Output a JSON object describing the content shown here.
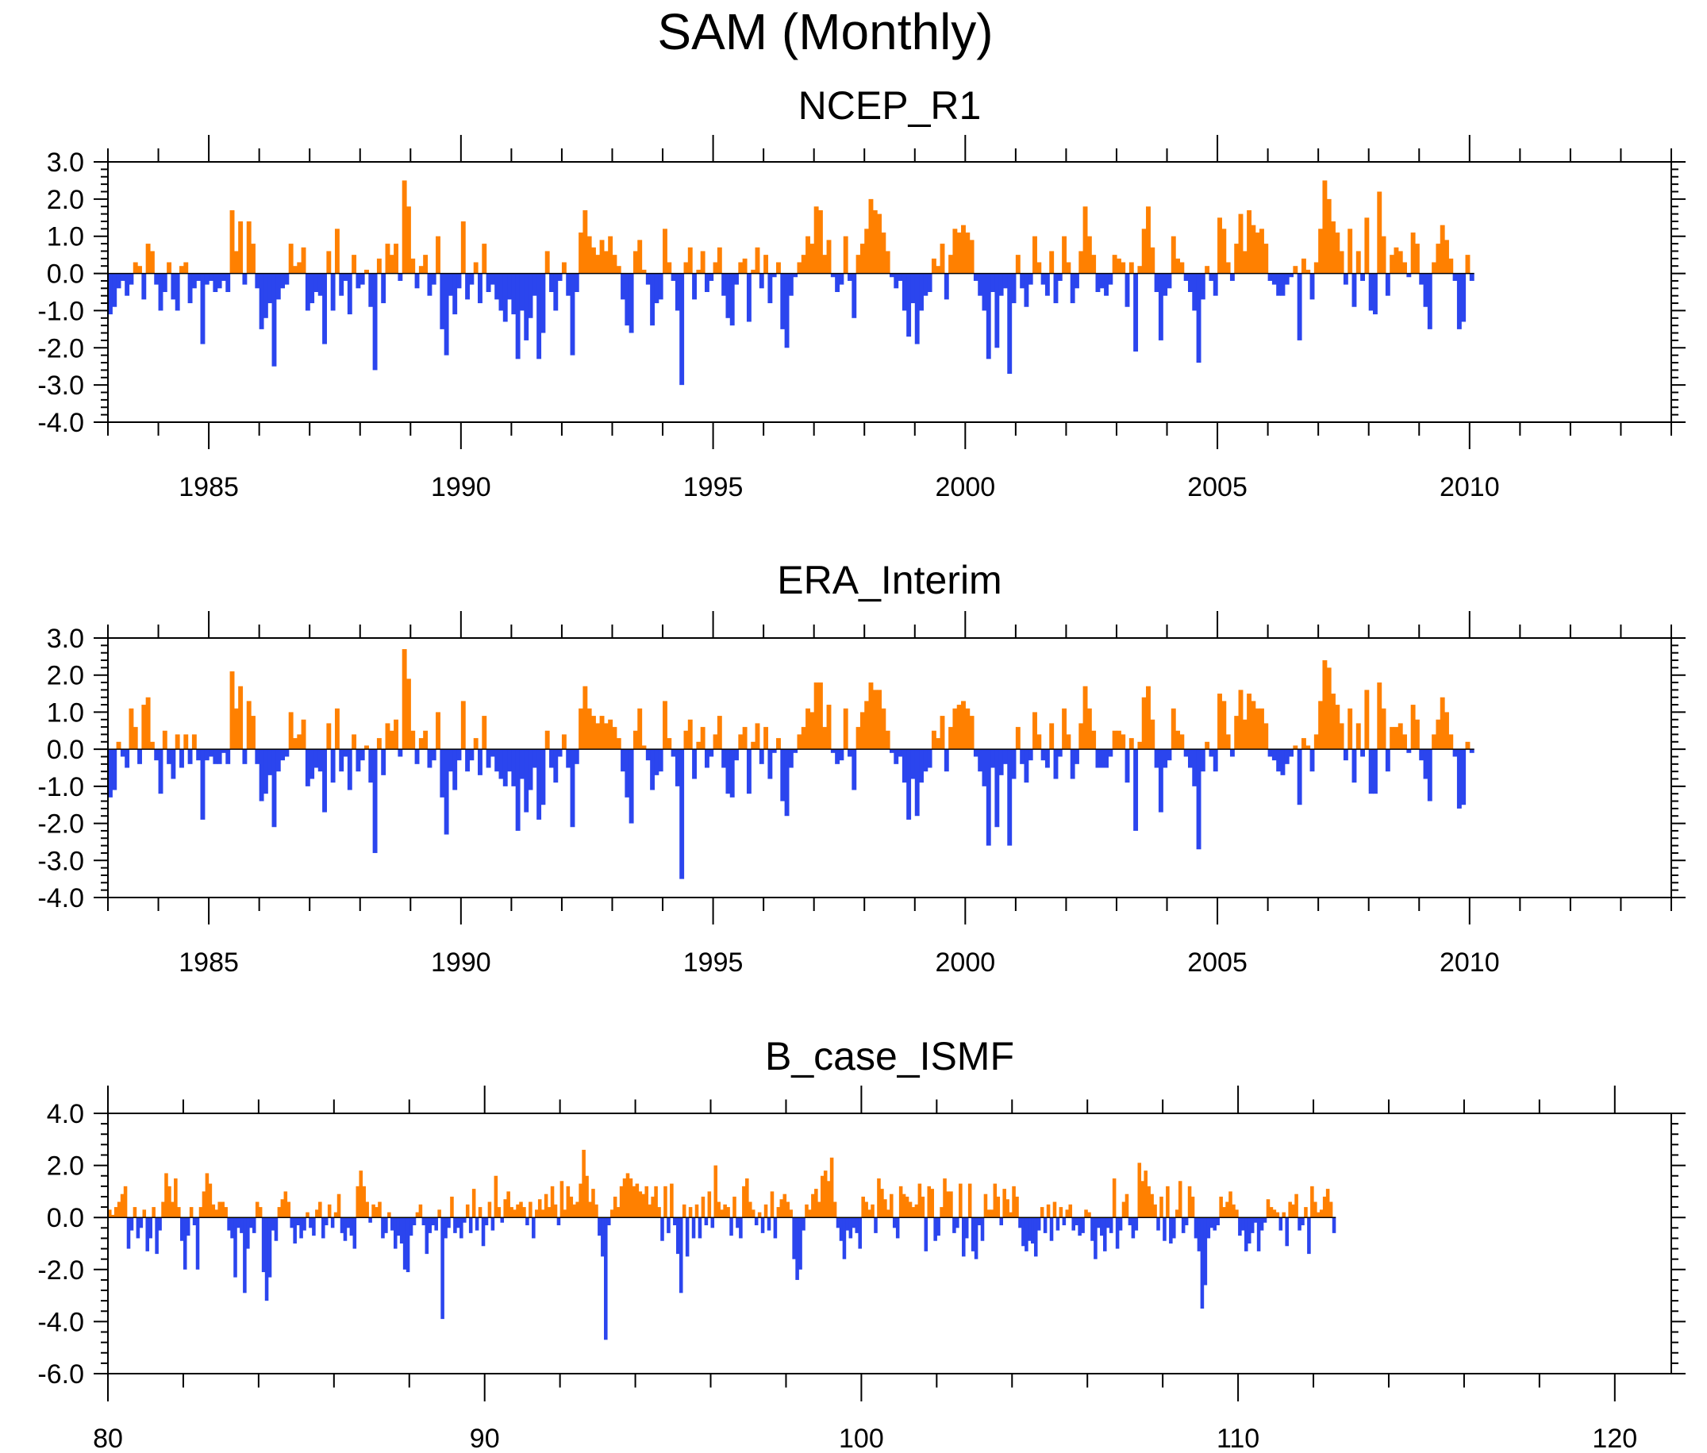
{
  "title": "SAM (Monthly)",
  "colors": {
    "positive": "#ff8000",
    "negative": "#2b45ee",
    "axis": "#000000"
  },
  "chart_data": [
    {
      "type": "area",
      "title": "NCEP_R1",
      "xlabel": "",
      "ylabel": "",
      "xlim": [
        1983,
        2014
      ],
      "ylim": [
        -4.0,
        3.0
      ],
      "x_ticks": [
        "1985",
        "1990",
        "1995",
        "2000",
        "2005",
        "2010"
      ],
      "x_tick_values": [
        1985,
        1990,
        1995,
        2000,
        2005,
        2010
      ],
      "y_ticks": [
        "3.0",
        "2.0",
        "1.0",
        "0.0",
        "-1.0",
        "-2.0",
        "-3.0",
        "-4.0"
      ],
      "y_tick_values": [
        3,
        2,
        1,
        0,
        -1,
        -2,
        -3,
        -4
      ],
      "positive_color": "#ff8000",
      "negative_color": "#2b45ee",
      "x_start": 1983.0,
      "x_step": 0.0833333,
      "values": [
        -1.1,
        -0.9,
        -0.4,
        -0.2,
        -0.6,
        -0.3,
        0.3,
        0.2,
        -0.7,
        0.8,
        0.6,
        -0.3,
        -1.0,
        -0.5,
        0.3,
        -0.7,
        -1.0,
        0.2,
        0.3,
        -0.8,
        -0.4,
        -0.2,
        -1.9,
        -0.3,
        -0.2,
        -0.5,
        -0.4,
        -0.2,
        -0.5,
        1.7,
        0.6,
        1.4,
        -0.3,
        1.4,
        0.8,
        -0.4,
        -1.5,
        -1.2,
        -0.8,
        -2.5,
        -0.7,
        -0.4,
        -0.3,
        0.8,
        0.2,
        0.3,
        0.7,
        -1.0,
        -0.8,
        -0.5,
        -0.6,
        -1.9,
        0.6,
        -1.0,
        1.2,
        -0.6,
        -0.2,
        -1.1,
        0.5,
        -0.4,
        -0.3,
        0.1,
        -0.9,
        -2.6,
        0.4,
        -0.8,
        0.8,
        0.5,
        0.8,
        -0.2,
        2.5,
        1.8,
        0.4,
        -0.4,
        0.2,
        0.5,
        -0.6,
        -0.3,
        1.0,
        -1.5,
        -2.2,
        -0.6,
        -1.1,
        -0.4,
        1.4,
        -0.7,
        -0.3,
        0.3,
        -0.8,
        0.8,
        -0.5,
        -0.3,
        -0.7,
        -1.0,
        -1.3,
        -0.7,
        -1.1,
        -2.3,
        -1.0,
        -1.8,
        -1.2,
        -0.6,
        -2.3,
        -1.6,
        0.6,
        -0.5,
        -1.0,
        -0.2,
        0.3,
        -0.6,
        -2.2,
        -0.5,
        1.1,
        1.7,
        1.0,
        0.7,
        0.5,
        0.9,
        0.6,
        1.0,
        0.5,
        0.2,
        -0.7,
        -1.4,
        -1.6,
        0.6,
        0.9,
        0.1,
        -0.3,
        -1.4,
        -0.8,
        -0.7,
        1.2,
        0.3,
        -0.2,
        -1.0,
        -3.0,
        0.3,
        0.7,
        -0.7,
        0.1,
        0.6,
        -0.5,
        -0.2,
        0.3,
        0.7,
        -0.6,
        -1.2,
        -1.4,
        -0.3,
        0.3,
        0.4,
        -1.3,
        0.1,
        0.7,
        -0.4,
        0.5,
        -0.8,
        -0.1,
        0.3,
        -1.5,
        -2.0,
        -0.6,
        -0.1,
        0.3,
        0.5,
        1.0,
        0.8,
        1.8,
        1.7,
        0.5,
        0.9,
        -0.1,
        -0.5,
        -0.3,
        1.0,
        -0.2,
        -1.2,
        0.5,
        0.8,
        1.2,
        2.0,
        1.7,
        1.6,
        1.1,
        0.6,
        -0.1,
        -0.4,
        -0.2,
        -1.0,
        -1.7,
        -0.8,
        -1.9,
        -1.0,
        -0.6,
        -0.5,
        0.4,
        0.2,
        0.8,
        -0.7,
        0.5,
        1.2,
        1.1,
        1.3,
        1.1,
        0.9,
        -0.2,
        -0.6,
        -1.0,
        -2.3,
        -0.5,
        -2.0,
        -0.6,
        -0.4,
        -2.7,
        -0.8,
        0.5,
        -0.4,
        -0.9,
        -0.3,
        1.0,
        0.3,
        -0.3,
        -0.6,
        0.6,
        -0.8,
        -0.2,
        1.0,
        0.3,
        -0.8,
        -0.4,
        0.6,
        1.8,
        1.0,
        0.5,
        -0.5,
        -0.4,
        -0.6,
        -0.3,
        0.5,
        0.4,
        0.3,
        -0.9,
        0.3,
        -2.1,
        0.2,
        1.2,
        1.8,
        0.7,
        -0.5,
        -1.8,
        -0.6,
        -0.4,
        1.0,
        0.4,
        0.3,
        -0.2,
        -0.5,
        -1.0,
        -2.4,
        -0.7,
        0.2,
        -0.2,
        -0.6,
        1.5,
        1.2,
        0.3,
        -0.2,
        0.8,
        1.6,
        0.6,
        1.7,
        1.3,
        1.1,
        1.2,
        0.8,
        -0.2,
        -0.3,
        -0.6,
        -0.6,
        -0.3,
        -0.1,
        0.2,
        -1.8,
        0.4,
        0.1,
        -0.7,
        0.3,
        1.2,
        2.5,
        2.0,
        1.4,
        1.1,
        0.6,
        -0.3,
        1.2,
        -0.9,
        0.6,
        -0.2,
        1.5,
        -1.0,
        -1.1,
        2.2,
        1.0,
        -0.6,
        0.5,
        0.7,
        0.6,
        0.3,
        -0.1,
        1.1,
        0.8,
        -0.3,
        -0.9,
        -1.5,
        0.3,
        0.8,
        1.3,
        0.9,
        0.4,
        -0.2,
        -1.5,
        -1.3,
        0.5,
        -0.2
      ]
    },
    {
      "type": "area",
      "title": "ERA_Interim",
      "xlabel": "",
      "ylabel": "",
      "xlim": [
        1983,
        2014
      ],
      "ylim": [
        -4.0,
        3.0
      ],
      "x_ticks": [
        "1985",
        "1990",
        "1995",
        "2000",
        "2005",
        "2010"
      ],
      "x_tick_values": [
        1985,
        1990,
        1995,
        2000,
        2005,
        2010
      ],
      "y_ticks": [
        "3.0",
        "2.0",
        "1.0",
        "0.0",
        "-1.0",
        "-2.0",
        "-3.0",
        "-4.0"
      ],
      "y_tick_values": [
        3,
        2,
        1,
        0,
        -1,
        -2,
        -3,
        -4
      ],
      "positive_color": "#ff8000",
      "negative_color": "#2b45ee",
      "x_start": 1983.0,
      "x_step": 0.0833333,
      "values": [
        -1.3,
        -1.1,
        0.2,
        -0.2,
        -0.5,
        1.1,
        0.6,
        -0.4,
        1.2,
        1.4,
        0.2,
        -0.3,
        -1.2,
        0.5,
        -0.4,
        -0.8,
        0.4,
        -0.5,
        0.4,
        -0.4,
        0.4,
        -0.3,
        -1.9,
        -0.3,
        -0.2,
        -0.4,
        -0.4,
        -0.1,
        -0.4,
        2.1,
        1.1,
        1.7,
        -0.4,
        1.3,
        0.9,
        -0.4,
        -1.4,
        -1.2,
        -0.7,
        -2.1,
        -0.6,
        -0.3,
        -0.2,
        1.0,
        0.3,
        0.4,
        0.8,
        -1.0,
        -0.8,
        -0.5,
        -0.6,
        -1.7,
        0.7,
        -0.9,
        1.1,
        -0.6,
        -0.2,
        -1.1,
        0.4,
        -0.6,
        -0.3,
        0.1,
        -0.9,
        -2.8,
        0.3,
        -0.7,
        0.7,
        0.5,
        0.8,
        -0.2,
        2.7,
        1.9,
        0.5,
        -0.4,
        0.3,
        0.5,
        -0.5,
        -0.3,
        1.0,
        -1.3,
        -2.3,
        -0.6,
        -1.1,
        -0.3,
        1.3,
        -0.6,
        -0.3,
        0.3,
        -0.7,
        0.9,
        -0.5,
        -0.2,
        -0.6,
        -0.8,
        -1.0,
        -0.6,
        -1.0,
        -2.2,
        -0.8,
        -1.7,
        -1.1,
        -0.5,
        -1.9,
        -1.5,
        0.5,
        -0.5,
        -0.9,
        -0.2,
        0.4,
        -0.5,
        -2.1,
        -0.4,
        1.1,
        1.7,
        1.1,
        0.9,
        0.7,
        0.9,
        0.7,
        0.8,
        0.6,
        0.3,
        -0.6,
        -1.3,
        -2.0,
        0.5,
        1.1,
        0.1,
        -0.3,
        -1.1,
        -0.7,
        -0.6,
        1.3,
        0.3,
        -0.2,
        -1.0,
        -3.5,
        0.5,
        0.8,
        -0.8,
        0.2,
        0.6,
        -0.5,
        -0.2,
        0.4,
        0.9,
        -0.5,
        -1.2,
        -1.3,
        -0.3,
        0.4,
        0.6,
        -1.2,
        0.2,
        0.7,
        -0.4,
        0.6,
        -0.8,
        -0.1,
        0.3,
        -1.4,
        -1.8,
        -0.5,
        -0.1,
        0.4,
        0.6,
        1.1,
        1.0,
        1.8,
        1.8,
        0.6,
        1.2,
        -0.1,
        -0.4,
        -0.3,
        1.1,
        -0.2,
        -1.1,
        0.6,
        1.0,
        1.3,
        1.8,
        1.6,
        1.6,
        1.1,
        0.5,
        -0.1,
        -0.4,
        -0.2,
        -0.9,
        -1.9,
        -0.8,
        -1.8,
        -0.9,
        -0.6,
        -0.5,
        0.5,
        0.3,
        0.9,
        -0.6,
        0.6,
        1.1,
        1.2,
        1.3,
        1.1,
        0.9,
        -0.2,
        -0.6,
        -1.0,
        -2.6,
        -0.5,
        -2.1,
        -0.7,
        -0.4,
        -2.6,
        -0.8,
        0.6,
        -0.4,
        -0.9,
        -0.3,
        1.0,
        0.4,
        -0.3,
        -0.5,
        0.7,
        -0.8,
        -0.2,
        1.1,
        0.4,
        -0.8,
        -0.4,
        0.7,
        1.7,
        1.1,
        0.5,
        -0.5,
        -0.5,
        -0.5,
        -0.2,
        0.5,
        0.5,
        0.4,
        -0.9,
        0.3,
        -2.2,
        0.2,
        1.4,
        1.7,
        0.8,
        -0.5,
        -1.7,
        -0.5,
        -0.3,
        1.1,
        0.5,
        0.4,
        -0.2,
        -0.5,
        -1.0,
        -2.7,
        -0.6,
        0.2,
        -0.2,
        -0.6,
        1.5,
        1.3,
        0.4,
        -0.2,
        0.9,
        1.6,
        0.8,
        1.5,
        1.3,
        1.1,
        1.1,
        0.7,
        -0.2,
        -0.3,
        -0.6,
        -0.7,
        -0.4,
        -0.2,
        0.1,
        -1.5,
        0.3,
        0.1,
        -0.6,
        0.4,
        1.3,
        2.4,
        2.2,
        1.5,
        1.2,
        0.7,
        -0.3,
        1.1,
        -0.9,
        0.7,
        -0.2,
        1.6,
        -1.2,
        -1.2,
        1.8,
        1.1,
        -0.6,
        0.6,
        0.6,
        0.7,
        0.4,
        -0.1,
        1.2,
        0.8,
        -0.3,
        -0.8,
        -1.4,
        0.4,
        0.8,
        1.4,
        1.0,
        0.4,
        -0.2,
        -1.6,
        -1.5,
        0.2,
        -0.1
      ]
    },
    {
      "type": "area",
      "title": "B_case_ISMF",
      "xlabel": "",
      "ylabel": "",
      "xlim": [
        80,
        121.5
      ],
      "ylim": [
        -6.0,
        4.0
      ],
      "x_ticks": [
        "80",
        "90",
        "100",
        "110",
        "120"
      ],
      "x_tick_values": [
        80,
        90,
        100,
        110,
        120
      ],
      "y_ticks": [
        "4.0",
        "2.0",
        "0.0",
        "-2.0",
        "-4.0",
        "-6.0"
      ],
      "y_tick_values": [
        4,
        2,
        0,
        -2,
        -4,
        -6
      ],
      "positive_color": "#ff8000",
      "negative_color": "#2b45ee",
      "x_start": 80.0,
      "x_step": 0.0833333,
      "values": [
        0.3,
        0.1,
        0.4,
        0.6,
        0.9,
        1.2,
        -1.2,
        -0.5,
        0.4,
        -0.8,
        -0.4,
        0.3,
        -1.3,
        -0.8,
        0.4,
        -1.4,
        -0.5,
        0.6,
        1.7,
        1.2,
        0.6,
        1.5,
        0.4,
        -0.9,
        -2.0,
        -0.7,
        0.4,
        -0.3,
        -2.0,
        0.4,
        1.0,
        1.7,
        1.3,
        0.5,
        0.3,
        0.6,
        0.6,
        0.4,
        -0.5,
        -0.8,
        -2.3,
        -0.4,
        -0.6,
        -2.9,
        -1.2,
        -0.4,
        -0.6,
        0.6,
        0.4,
        -2.1,
        -3.2,
        -2.3,
        -0.5,
        -0.9,
        0.4,
        0.7,
        1.0,
        0.6,
        -0.4,
        -1.0,
        -0.3,
        -0.8,
        -0.5,
        0.2,
        -0.4,
        -0.7,
        0.3,
        0.6,
        -0.8,
        -0.3,
        0.5,
        -0.4,
        0.2,
        0.9,
        -0.6,
        -0.9,
        -0.4,
        -0.7,
        -1.2,
        1.2,
        1.8,
        1.2,
        0.6,
        -0.2,
        0.5,
        0.4,
        0.6,
        -0.8,
        -0.6,
        0.2,
        -0.5,
        -1.2,
        -0.7,
        -1.0,
        -2.0,
        -2.1,
        -0.7,
        -0.3,
        0.2,
        0.5,
        -0.3,
        -1.4,
        -0.6,
        -0.3,
        -0.5,
        0.3,
        -3.9,
        -0.8,
        -0.4,
        0.8,
        -0.6,
        -0.4,
        -0.8,
        -0.2,
        0.5,
        -0.6,
        1.1,
        -0.5,
        0.4,
        -1.1,
        -0.3,
        0.6,
        -0.5,
        1.6,
        0.4,
        -0.2,
        0.7,
        1.0,
        0.4,
        0.3,
        0.5,
        0.6,
        0.4,
        -0.3,
        0.6,
        -0.8,
        0.3,
        0.7,
        0.3,
        0.9,
        0.4,
        1.2,
        0.5,
        -0.3,
        1.4,
        0.3,
        1.2,
        0.8,
        0.5,
        0.6,
        1.3,
        2.6,
        1.6,
        0.6,
        1.1,
        0.5,
        -0.7,
        -1.5,
        -4.7,
        -0.3,
        0.3,
        0.8,
        0.4,
        1.2,
        1.5,
        1.7,
        1.5,
        1.2,
        1.3,
        1.0,
        0.9,
        1.2,
        0.5,
        0.8,
        1.2,
        0.4,
        -0.9,
        1.2,
        -0.6,
        1.3,
        -0.3,
        -1.4,
        -2.9,
        0.5,
        -1.5,
        0.4,
        -0.8,
        0.5,
        -0.8,
        0.8,
        -0.3,
        1.0,
        -0.4,
        2.0,
        0.6,
        0.3,
        0.5,
        0.4,
        -0.7,
        0.8,
        -0.4,
        -0.8,
        1.2,
        1.5,
        0.6,
        0.3,
        -0.3,
        0.2,
        -0.6,
        0.5,
        -0.5,
        1.0,
        -0.8,
        0.4,
        0.7,
        0.9,
        0.6,
        0.3,
        -1.6,
        -2.4,
        -2.0,
        -0.5,
        0.5,
        0.3,
        0.9,
        1.1,
        0.6,
        1.6,
        1.8,
        1.4,
        2.3,
        0.6,
        -0.4,
        -0.9,
        -1.6,
        -0.5,
        -0.8,
        -0.4,
        -0.6,
        -1.2,
        0.8,
        0.6,
        0.3,
        0.5,
        -0.6,
        1.5,
        1.1,
        0.7,
        0.3,
        0.9,
        -0.4,
        -0.8,
        1.2,
        0.9,
        0.8,
        0.6,
        0.4,
        0.5,
        1.3,
        0.8,
        -1.3,
        1.2,
        1.1,
        -0.9,
        -0.7,
        0.4,
        1.5,
        1.0,
        1.0,
        -0.6,
        -0.4,
        1.3,
        -1.5,
        -0.8,
        1.3,
        -1.3,
        -1.6,
        -0.3,
        -0.9,
        0.9,
        0.3,
        0.3,
        1.3,
        0.8,
        -0.3,
        1.1,
        0.7,
        0.2,
        1.2,
        0.8,
        -0.4,
        -1.1,
        -1.3,
        -0.9,
        -1.0,
        -1.5,
        -0.5,
        0.4,
        -0.6,
        0.5,
        -0.9,
        0.6,
        -0.5,
        0.4,
        -0.3,
        0.3,
        0.5,
        -0.5,
        -0.3,
        -0.7,
        -0.6,
        0.3,
        0.2,
        -0.9,
        -1.6,
        -0.4,
        -0.7,
        -1.3,
        -0.4,
        -0.6,
        1.5,
        -1.2,
        -0.5,
        0.6,
        0.9,
        -0.3,
        -0.8,
        -0.5,
        2.1,
        1.4,
        1.8,
        1.2,
        0.9,
        0.5,
        -0.5,
        0.8,
        -0.9,
        1.2,
        -1.0,
        -0.8,
        0.3,
        1.4,
        -0.6,
        -0.3,
        1.2,
        0.8,
        -0.8,
        -1.3,
        -3.5,
        -2.6,
        -0.8,
        -0.4,
        -0.5,
        -0.3,
        0.8,
        0.4,
        0.6,
        1.0,
        0.5,
        0.3,
        -0.7,
        -0.5,
        -1.3,
        -1.0,
        -0.6,
        -0.2,
        -1.3,
        -0.5,
        -0.2,
        0.7,
        0.4,
        0.3,
        0.2,
        -0.5,
        0.2,
        -1.1,
        0.6,
        0.5,
        0.9,
        -0.5,
        -0.3,
        0.4,
        -1.4,
        1.2,
        0.6,
        0.2,
        0.3,
        0.8,
        1.1,
        0.6,
        -0.6
      ]
    }
  ]
}
